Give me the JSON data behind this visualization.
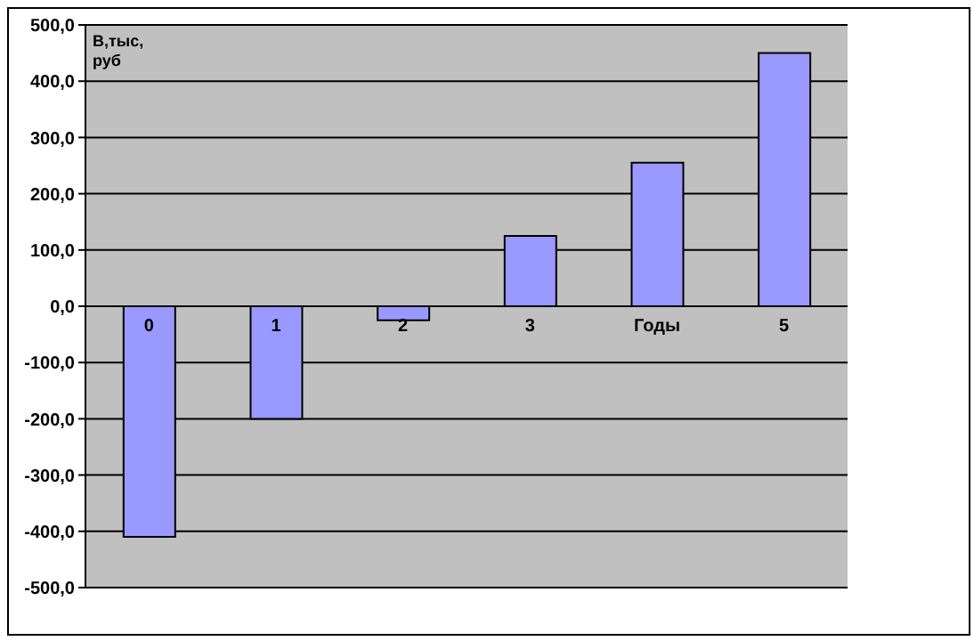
{
  "chart_data": {
    "type": "bar",
    "xlabel": "Годы",
    "ylabel": "В,тыс, руб",
    "categories": [
      "0",
      "1",
      "2",
      "3",
      null,
      "5"
    ],
    "values": [
      -410,
      -200,
      -25,
      125,
      255,
      450
    ],
    "color": "#9999ff",
    "ylim": [
      -500,
      500
    ],
    "yticks": [
      {
        "value": -500,
        "label": "-500,0"
      },
      {
        "value": -400,
        "label": "-400,0"
      },
      {
        "value": -300,
        "label": "-300,0"
      },
      {
        "value": -200,
        "label": "-200,0"
      },
      {
        "value": -100,
        "label": "-100,0"
      },
      {
        "value": 0,
        "label": "0,0"
      },
      {
        "value": 100,
        "label": "100,0"
      },
      {
        "value": 200,
        "label": "200,0"
      },
      {
        "value": 300,
        "label": "300,0"
      },
      {
        "value": 400,
        "label": "400,0"
      },
      {
        "value": 500,
        "label": "500,0"
      }
    ],
    "grid": "y",
    "legend": false
  }
}
